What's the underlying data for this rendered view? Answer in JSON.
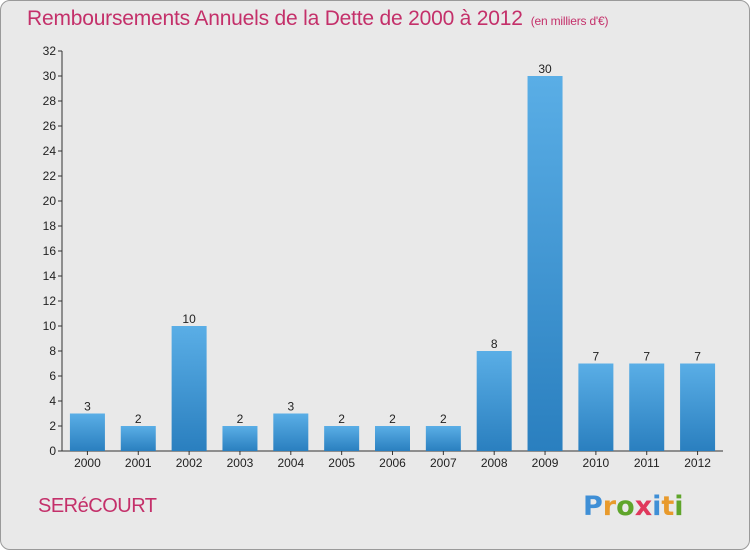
{
  "title": "Remboursements Annuels de la Dette de 2000 à 2012",
  "unit_note": "(en milliers d'€)",
  "commune": "SERéCOURT",
  "logo": {
    "letters": [
      "P",
      "r",
      "o",
      "x",
      "i",
      "t",
      "i"
    ],
    "colors": [
      "#3f8fd6",
      "#e89a2c",
      "#5fa52b",
      "#e0385c",
      "#3f8fd6",
      "#e89a2c",
      "#5fa52b"
    ]
  },
  "colors": {
    "title": "#c4306a",
    "bar_light": "#5aaee6",
    "bar_dark": "#2a7fbf",
    "background": "#e9e9e9"
  },
  "chart_data": {
    "type": "bar",
    "title": "Remboursements Annuels de la Dette de 2000 à 2012",
    "subtitle": "(en milliers d'€)",
    "xlabel": "",
    "ylabel": "",
    "categories": [
      "2000",
      "2001",
      "2002",
      "2003",
      "2004",
      "2005",
      "2006",
      "2007",
      "2008",
      "2009",
      "2010",
      "2011",
      "2012"
    ],
    "values": [
      3,
      2,
      10,
      2,
      3,
      2,
      2,
      2,
      8,
      30,
      7,
      7,
      7
    ],
    "ylim": [
      0,
      32
    ],
    "yticks": [
      0,
      2,
      4,
      6,
      8,
      10,
      12,
      14,
      16,
      18,
      20,
      22,
      24,
      26,
      28,
      30,
      32
    ],
    "grid": false,
    "data_labels": true
  }
}
